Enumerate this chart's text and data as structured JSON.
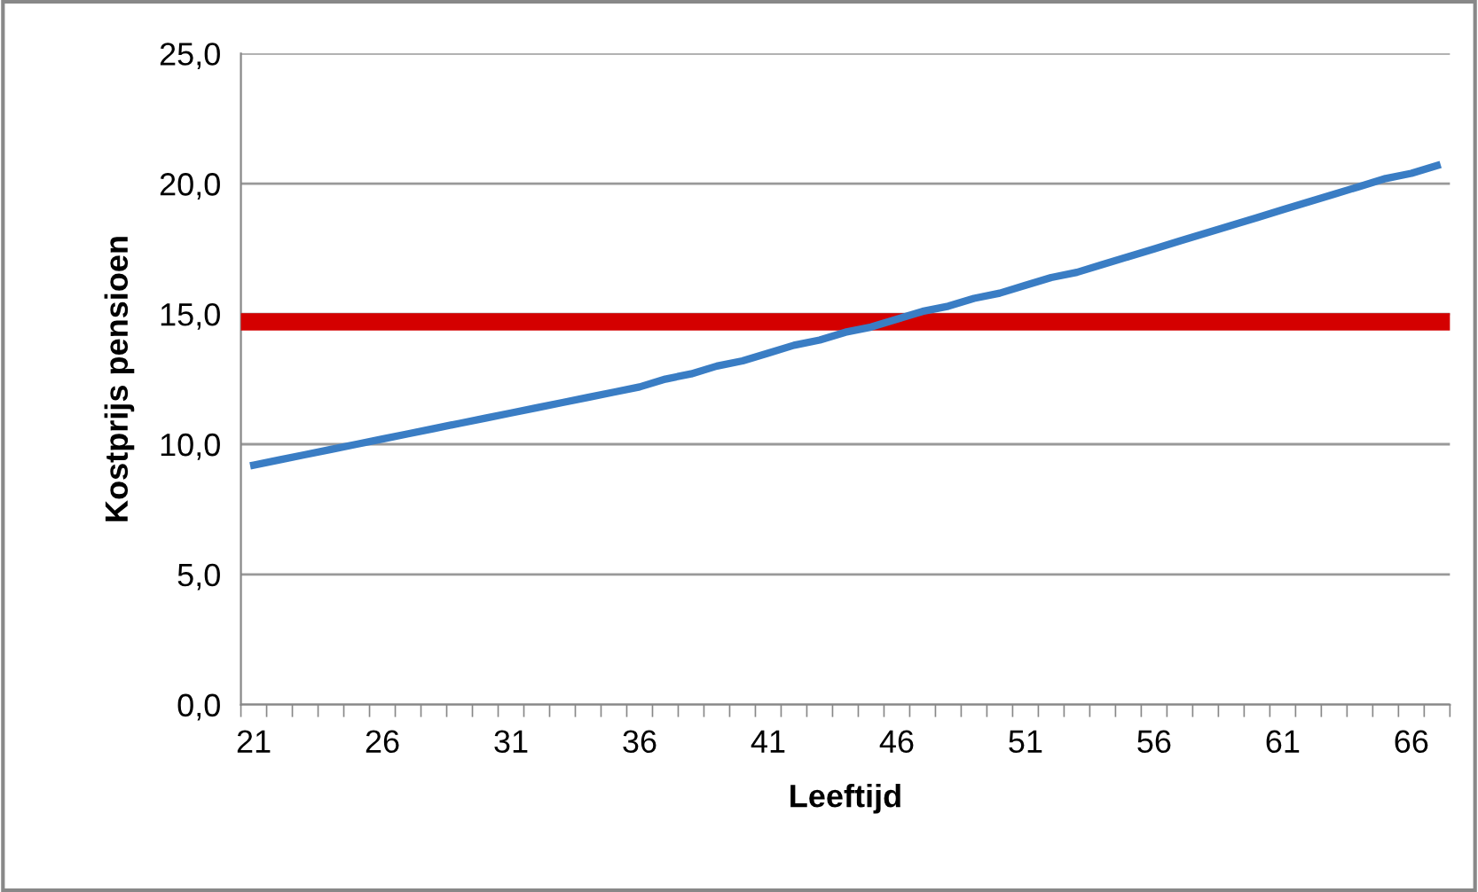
{
  "chart_data": {
    "type": "line",
    "xlabel": "Leeftijd",
    "ylabel": "Kostprijs pensioen",
    "categories": [
      "21",
      null,
      null,
      null,
      null,
      "26",
      null,
      null,
      null,
      null,
      "31",
      null,
      null,
      null,
      null,
      "36",
      null,
      null,
      null,
      null,
      "41",
      null,
      null,
      null,
      null,
      "46",
      null,
      null,
      null,
      null,
      "51",
      null,
      null,
      null,
      null,
      "56",
      null,
      null,
      null,
      null,
      "61",
      null,
      null,
      null,
      null,
      "66",
      null
    ],
    "series": [
      {
        "color": "#3a7dc4",
        "values": [
          9.2,
          9.4,
          9.6,
          9.8,
          10.0,
          10.2,
          10.4,
          10.6,
          10.8,
          11.0,
          11.2,
          11.4,
          11.6,
          11.8,
          12.0,
          12.2,
          12.5,
          12.7,
          13.0,
          13.2,
          13.5,
          13.8,
          14.0,
          14.3,
          14.5,
          14.8,
          15.1,
          15.3,
          15.6,
          15.8,
          16.1,
          16.4,
          16.6,
          16.9,
          17.2,
          17.5,
          17.8,
          18.1,
          18.4,
          18.7,
          19.0,
          19.3,
          19.6,
          19.9,
          20.2,
          20.4,
          20.7
        ]
      }
    ],
    "ref_lines": [
      {
        "axis": "y",
        "value": 14.7,
        "color": "#d40000"
      }
    ],
    "ylim": [
      0,
      25
    ],
    "yticks": [
      {
        "value": 0,
        "label": "0,0"
      },
      {
        "value": 5,
        "label": "5,0"
      },
      {
        "value": 10,
        "label": "10,0"
      },
      {
        "value": 15,
        "label": "15,0"
      },
      {
        "value": 20,
        "label": "20,0"
      },
      {
        "value": 25,
        "label": "25,0"
      }
    ],
    "grid": "y",
    "marker": "none",
    "line_style": "solid"
  }
}
